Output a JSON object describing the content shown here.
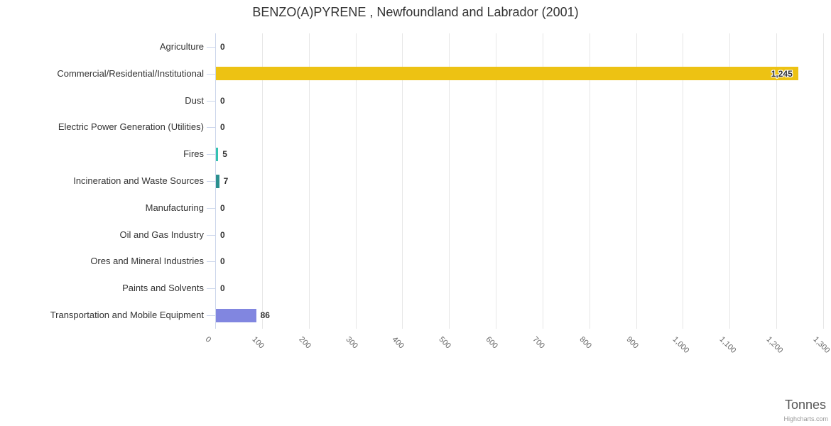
{
  "header": {
    "title": "BENZO(A)PYRENE , Newfoundland and Labrador (2001)"
  },
  "chart_data": {
    "type": "bar",
    "orientation": "horizontal",
    "title": "BENZO(A)PYRENE , Newfoundland and Labrador (2001)",
    "categories": [
      "Agriculture",
      "Commercial/Residential/Institutional",
      "Dust",
      "Electric Power Generation (Utilities)",
      "Fires",
      "Incineration and Waste Sources",
      "Manufacturing",
      "Oil and Gas Industry",
      "Ores and Mineral Industries",
      "Paints and Solvents",
      "Transportation and Mobile Equipment"
    ],
    "values": [
      0,
      1245,
      0,
      0,
      5,
      7,
      0,
      0,
      0,
      0,
      86
    ],
    "value_labels": [
      "0",
      "1,245",
      "0",
      "0",
      "5",
      "7",
      "0",
      "0",
      "0",
      "0",
      "86"
    ],
    "bar_colors": [
      null,
      "#edc213",
      null,
      null,
      "#35c2b1",
      "#2b908f",
      null,
      null,
      null,
      null,
      "#8186e0"
    ],
    "xlabel": "Tonnes",
    "ylabel": "",
    "xlim": [
      0,
      1300
    ],
    "xticks": [
      0,
      100,
      200,
      300,
      400,
      500,
      600,
      700,
      800,
      900,
      1000,
      1100,
      1200,
      1300
    ],
    "xtick_labels": [
      "0",
      "100",
      "200",
      "300",
      "400",
      "500",
      "600",
      "700",
      "800",
      "900",
      "1,000",
      "1,100",
      "1,200",
      "1,300"
    ],
    "tick_label_rotation": 45,
    "grid": true,
    "legend": false
  },
  "footer": {
    "credit": "Highcharts.com"
  },
  "colors": {
    "axis_line": "#ccd6eb",
    "gridline": "#e6e6e6",
    "title_text": "#333333",
    "category_label": "#333333",
    "tick_label": "#666666",
    "axis_title": "#555555",
    "credit": "#999999",
    "data_label": "#333333"
  }
}
